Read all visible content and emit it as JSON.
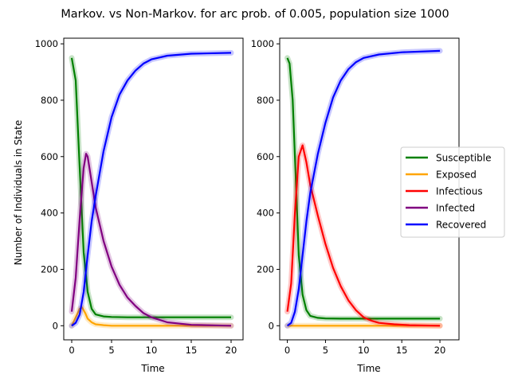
{
  "figure": {
    "title": "Markov. vs Non-Markov. for arc prob. of 0.005, population size 1000"
  },
  "chart_data": [
    {
      "type": "line",
      "panel": "left",
      "xlabel": "Time",
      "ylabel": "Number of Individuals in State",
      "xlim": [
        -1,
        21.5
      ],
      "ylim": [
        -50,
        1020
      ],
      "xticks": [
        0,
        5,
        10,
        15,
        20
      ],
      "yticks": [
        0,
        200,
        400,
        600,
        800,
        1000
      ],
      "grid": false,
      "series": [
        {
          "name": "Susceptible",
          "color": "#008000",
          "x": [
            0,
            0.5,
            1,
            1.5,
            2,
            2.5,
            3,
            4,
            5,
            7,
            10,
            15,
            20
          ],
          "y": [
            950,
            870,
            560,
            260,
            120,
            60,
            40,
            33,
            31,
            30,
            30,
            30,
            30
          ]
        },
        {
          "name": "Exposed",
          "color": "#FFA500",
          "x": [
            0,
            0.5,
            1,
            1.3,
            1.7,
            2,
            2.5,
            3,
            4,
            5,
            10,
            20
          ],
          "y": [
            0,
            30,
            60,
            65,
            45,
            25,
            12,
            5,
            2,
            0,
            0,
            0
          ]
        },
        {
          "name": "Infected",
          "color": "#800080",
          "x": [
            0,
            0.5,
            1,
            1.5,
            1.8,
            2,
            2.5,
            3,
            4,
            5,
            6,
            7,
            8,
            9,
            10,
            12,
            15,
            20
          ],
          "y": [
            50,
            170,
            380,
            560,
            610,
            600,
            510,
            420,
            300,
            210,
            145,
            100,
            70,
            45,
            30,
            12,
            3,
            0
          ]
        },
        {
          "name": "Recovered",
          "color": "#0000FF",
          "x": [
            0,
            0.5,
            1,
            1.5,
            2,
            2.5,
            3,
            4,
            5,
            6,
            7,
            8,
            9,
            10,
            12,
            15,
            20
          ],
          "y": [
            0,
            10,
            40,
            120,
            250,
            370,
            460,
            620,
            740,
            820,
            870,
            905,
            930,
            945,
            958,
            965,
            968
          ]
        }
      ]
    },
    {
      "type": "line",
      "panel": "right",
      "xlabel": "Time",
      "ylabel": "",
      "xlim": [
        -1,
        22.5
      ],
      "ylim": [
        -50,
        1020
      ],
      "xticks": [
        0,
        5,
        10,
        15,
        20
      ],
      "yticks": [
        0,
        200,
        400,
        600,
        800,
        1000
      ],
      "grid": false,
      "legend_position": "center-right",
      "series": [
        {
          "name": "Susceptible",
          "color": "#008000",
          "x": [
            0,
            0.3,
            0.7,
            1,
            1.5,
            2,
            2.5,
            3,
            4,
            5,
            7,
            10,
            15,
            20
          ],
          "y": [
            950,
            930,
            800,
            600,
            250,
            110,
            55,
            35,
            28,
            26,
            25,
            25,
            25,
            25
          ]
        },
        {
          "name": "Exposed",
          "color": "#FFA500",
          "x": [
            0,
            20
          ],
          "y": [
            0,
            0
          ]
        },
        {
          "name": "Infectious",
          "color": "#FF0000",
          "x": [
            0,
            0.5,
            1,
            1.5,
            2,
            2.5,
            3,
            4,
            5,
            6,
            7,
            8,
            9,
            10,
            11,
            12,
            14,
            16,
            20
          ],
          "y": [
            50,
            150,
            400,
            600,
            640,
            580,
            500,
            390,
            290,
            205,
            140,
            90,
            55,
            30,
            18,
            10,
            5,
            2,
            0
          ]
        },
        {
          "name": "Recovered",
          "color": "#0000FF",
          "x": [
            0,
            0.5,
            1,
            1.5,
            2,
            2.5,
            3,
            4,
            5,
            6,
            7,
            8,
            9,
            10,
            12,
            15,
            20
          ],
          "y": [
            0,
            10,
            50,
            130,
            250,
            370,
            470,
            610,
            720,
            810,
            870,
            910,
            935,
            950,
            962,
            970,
            975
          ]
        }
      ]
    }
  ],
  "legend": {
    "items": [
      {
        "label": "Susceptible",
        "color": "#008000"
      },
      {
        "label": "Exposed",
        "color": "#FFA500"
      },
      {
        "label": "Infectious",
        "color": "#FF0000"
      },
      {
        "label": "Infected",
        "color": "#800080"
      },
      {
        "label": "Recovered",
        "color": "#0000FF"
      }
    ]
  }
}
